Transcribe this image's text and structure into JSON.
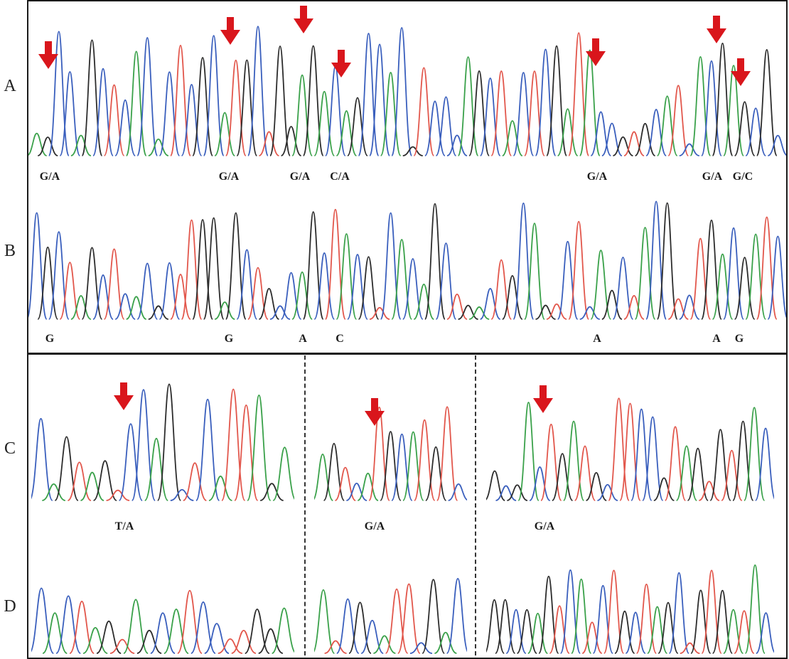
{
  "colors": {
    "A": "#3aa14a",
    "C": "#3a5fbd",
    "G": "#2d2d2d",
    "T": "#e2574c",
    "arrow": "#d9161c"
  },
  "rows": [
    {
      "label": "A"
    },
    {
      "label": "B"
    },
    {
      "label": "C"
    },
    {
      "label": "D"
    }
  ],
  "panel_a_calls": [
    "G/A",
    "G/A",
    "G/A",
    "C/A",
    "G/A",
    "G/A",
    "G/C"
  ],
  "panel_b_calls": [
    "G",
    "G",
    "A",
    "C",
    "A",
    "A",
    "G"
  ],
  "panel_c_calls": [
    "T/A",
    "G/A",
    "G/A"
  ],
  "chromatograms": {
    "A": "AGCCAGCTCACACTCGCATGCTGGAGACAGCCACGTCCCAGCTACTCGATACCGTGCATCACGAGCGC",
    "B": "CGCTAGCTCACGCTTGGAGCTGCCAGCTACGTCACAGCTGACTGCAGTCTCAGCTACGTCTGACGATC",
    "C1": "CAGTAGTCCAGCTCATTAGA",
    "C2": "AGTCATGCATGTC",
    "C3": "GCGACTGATGCTTCCGTAGTGTGAC",
    "D1": "CACTAGTAGCATCCTTGGA",
    "D2": "ATCGCATTCGAC",
    "D3": "GGCGAGTCATCTGCTAGCTGTGATAC"
  }
}
